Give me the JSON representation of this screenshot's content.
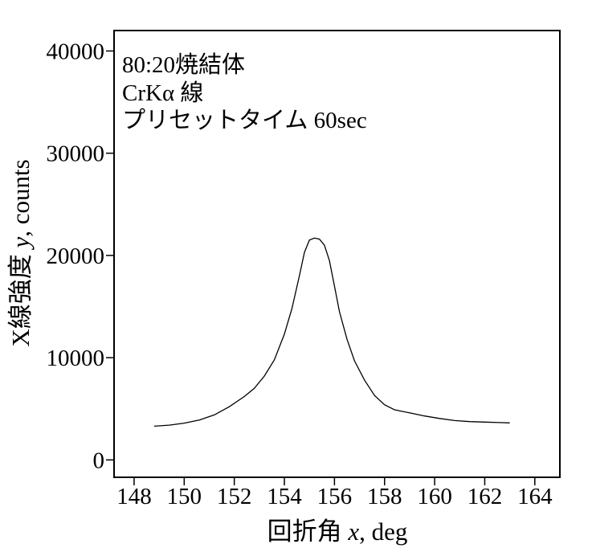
{
  "chart_data": {
    "type": "line",
    "title": "",
    "annotations": [
      "80:20焼結体",
      "CrKα 線",
      "プリセットタイム 60sec"
    ],
    "xlabel_prefix": "回折角 ",
    "xlabel_var": "x",
    "xlabel_suffix": ", deg",
    "ylabel_prefix": "X線強度 ",
    "ylabel_var": "y",
    "ylabel_suffix": ", counts",
    "xlim": [
      147.2,
      165.0
    ],
    "ylim": [
      -1700,
      42000
    ],
    "xticks": [
      148,
      150,
      152,
      154,
      156,
      158,
      160,
      162,
      164
    ],
    "xtick_labels": [
      "148",
      "150",
      "152",
      "154",
      "156",
      "158",
      "160",
      "162",
      "164"
    ],
    "yticks": [
      0,
      10000,
      20000,
      30000,
      40000
    ],
    "ytick_labels": [
      "0",
      "10000",
      "20000",
      "30000",
      "40000"
    ],
    "grid": false,
    "legend": "none",
    "series": [
      {
        "x": [
          148.8,
          149.4,
          150.0,
          150.6,
          151.2,
          151.8,
          152.4,
          152.8,
          153.2,
          153.6,
          154.0,
          154.3,
          154.6,
          154.8,
          155.0,
          155.2,
          155.4,
          155.6,
          155.8,
          156.0,
          156.2,
          156.5,
          156.8,
          157.2,
          157.6,
          158.0,
          158.4,
          159.0,
          159.6,
          160.2,
          160.8,
          161.4,
          162.0,
          162.6,
          163.0
        ],
        "y": [
          3300,
          3400,
          3600,
          3900,
          4400,
          5200,
          6200,
          7000,
          8200,
          9800,
          12300,
          14800,
          18000,
          20300,
          21500,
          21700,
          21600,
          21000,
          19500,
          17000,
          14500,
          11800,
          9700,
          7800,
          6300,
          5400,
          4900,
          4600,
          4300,
          4050,
          3850,
          3750,
          3700,
          3650,
          3620
        ]
      }
    ]
  }
}
